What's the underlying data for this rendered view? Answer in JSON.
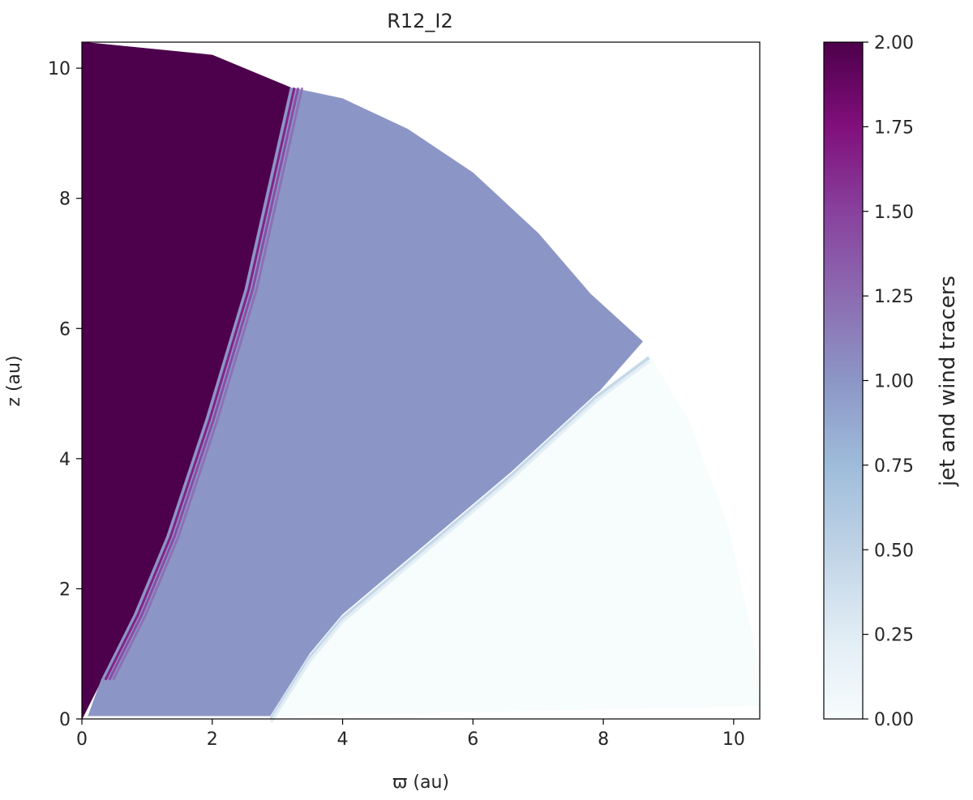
{
  "chart_data": {
    "type": "heatmap",
    "title": "R12_I2",
    "xlabel": "ϖ (au)",
    "ylabel": "z (au)",
    "xlim": [
      0,
      10.4
    ],
    "ylim": [
      0,
      10.4
    ],
    "xticks": [
      0,
      2,
      4,
      6,
      8,
      10
    ],
    "yticks": [
      0,
      2,
      4,
      6,
      8,
      10
    ],
    "grid": false,
    "colormap": "BuPu",
    "colorbar": {
      "label": "jet and wind tracers",
      "range": [
        0,
        2
      ],
      "ticks": [
        "0.00",
        "0.25",
        "0.50",
        "0.75",
        "1.00",
        "1.25",
        "1.50",
        "1.75",
        "2.00"
      ],
      "stops": [
        {
          "value": 0.0,
          "color": "#f7fcfd"
        },
        {
          "value": 0.25,
          "color": "#e0ecf4"
        },
        {
          "value": 0.5,
          "color": "#bfd3e6"
        },
        {
          "value": 0.75,
          "color": "#9ebcda"
        },
        {
          "value": 1.0,
          "color": "#8c96c6"
        },
        {
          "value": 1.25,
          "color": "#8c6bb1"
        },
        {
          "value": 1.5,
          "color": "#88419d"
        },
        {
          "value": 1.75,
          "color": "#810f7c"
        },
        {
          "value": 2.0,
          "color": "#4d004b"
        }
      ]
    },
    "domain_outer_radius": 10.4,
    "regions": [
      {
        "tracer_value": 2.0,
        "color": "#4d004b",
        "boundary": [
          [
            0,
            0
          ],
          [
            0.3,
            0.6
          ],
          [
            0.8,
            1.6
          ],
          [
            1.3,
            2.8
          ],
          [
            1.9,
            4.6
          ],
          [
            2.5,
            6.6
          ],
          [
            3.2,
            9.7
          ],
          [
            2.0,
            10.2
          ],
          [
            0,
            10.4
          ]
        ]
      },
      {
        "tracer_value": 1.0,
        "color": "#8c96c6",
        "boundary": [
          [
            0.1,
            0.05
          ],
          [
            0.3,
            0.6
          ],
          [
            0.8,
            1.6
          ],
          [
            1.3,
            2.8
          ],
          [
            1.9,
            4.6
          ],
          [
            2.5,
            6.6
          ],
          [
            3.2,
            9.7
          ],
          [
            4.0,
            9.53
          ],
          [
            5.0,
            9.06
          ],
          [
            6.0,
            8.39
          ],
          [
            7.0,
            7.46
          ],
          [
            7.8,
            6.53
          ],
          [
            8.6,
            5.8
          ],
          [
            7.9,
            5.0
          ],
          [
            6.6,
            3.8
          ],
          [
            5.3,
            2.7
          ],
          [
            4.0,
            1.6
          ],
          [
            3.5,
            1.0
          ],
          [
            2.9,
            0.05
          ]
        ]
      },
      {
        "tracer_value": 0.0,
        "color": "#f7fcfd",
        "boundary": [
          [
            2.9,
            0.05
          ],
          [
            3.5,
            1.0
          ],
          [
            4.0,
            1.6
          ],
          [
            5.3,
            2.7
          ],
          [
            6.6,
            3.8
          ],
          [
            7.9,
            5.0
          ],
          [
            8.7,
            5.6
          ],
          [
            9.3,
            4.6
          ],
          [
            9.9,
            3.0
          ],
          [
            10.3,
            1.2
          ],
          [
            10.4,
            0.2
          ]
        ]
      }
    ]
  }
}
